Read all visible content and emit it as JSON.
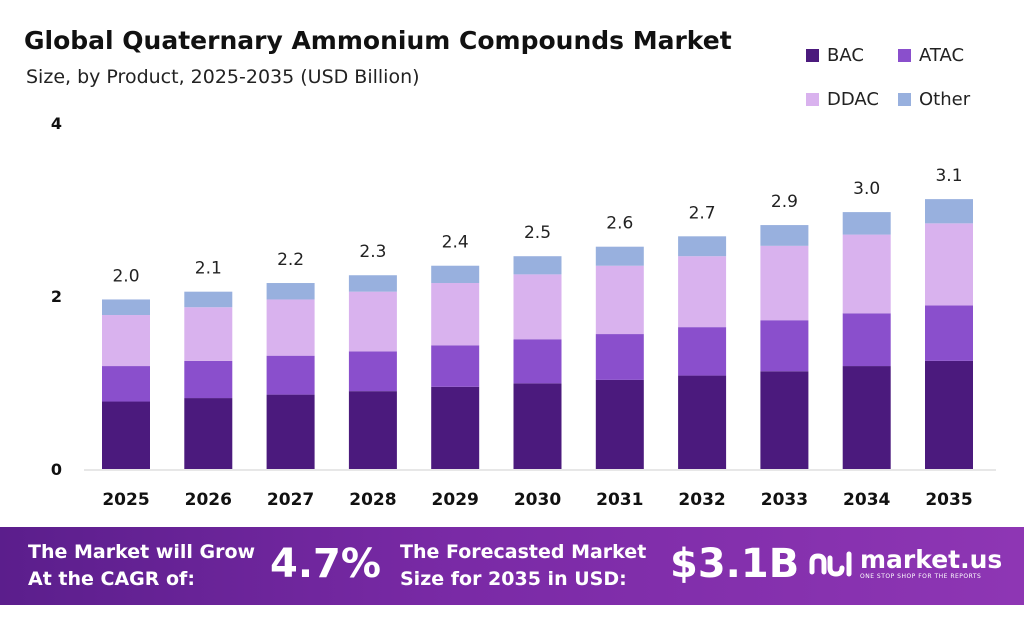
{
  "header": {
    "title": "Global Quaternary Ammonium Compounds Market",
    "subtitle": "Size, by Product, 2025-2035 (USD Billion)"
  },
  "legend": [
    {
      "label": "BAC",
      "color": "#4b1a7d"
    },
    {
      "label": "ATAC",
      "color": "#8a4fcc"
    },
    {
      "label": "DDAC",
      "color": "#d9b2ee"
    },
    {
      "label": "Other",
      "color": "#98b0de"
    }
  ],
  "chart_data": {
    "type": "bar",
    "stacked": true,
    "title": "Global Quaternary Ammonium Compounds Market",
    "subtitle": "Size, by Product, 2025-2035 (USD Billion)",
    "categories": [
      "2025",
      "2026",
      "2027",
      "2028",
      "2029",
      "2030",
      "2031",
      "2032",
      "2033",
      "2034",
      "2035"
    ],
    "series": [
      {
        "name": "BAC",
        "values": [
          0.78,
          0.82,
          0.86,
          0.9,
          0.95,
          0.99,
          1.03,
          1.08,
          1.13,
          1.19,
          1.25
        ]
      },
      {
        "name": "ATAC",
        "values": [
          0.41,
          0.43,
          0.45,
          0.46,
          0.48,
          0.51,
          0.53,
          0.56,
          0.59,
          0.61,
          0.64
        ]
      },
      {
        "name": "DDAC",
        "values": [
          0.59,
          0.62,
          0.65,
          0.69,
          0.72,
          0.75,
          0.79,
          0.82,
          0.86,
          0.91,
          0.95
        ]
      },
      {
        "name": "Other",
        "values": [
          0.18,
          0.18,
          0.19,
          0.19,
          0.2,
          0.21,
          0.22,
          0.23,
          0.24,
          0.26,
          0.28
        ]
      }
    ],
    "totals": [
      "2.0",
      "2.1",
      "2.2",
      "2.3",
      "2.4",
      "2.5",
      "2.6",
      "2.7",
      "2.9",
      "3.0",
      "3.1"
    ],
    "yticks": [
      0,
      2,
      4
    ],
    "ylim": [
      0,
      4
    ],
    "xlabel": "",
    "ylabel": "",
    "legend_position": "top-right"
  },
  "footer": {
    "cagr_label": "The Market will Grow At the CAGR of:",
    "cagr_value": "4.7%",
    "forecast_label": "The Forecasted Market Size for 2035 in USD:",
    "forecast_value": "$3.1B",
    "brand": "market.us",
    "tagline": "ONE STOP SHOP FOR THE REPORTS"
  }
}
